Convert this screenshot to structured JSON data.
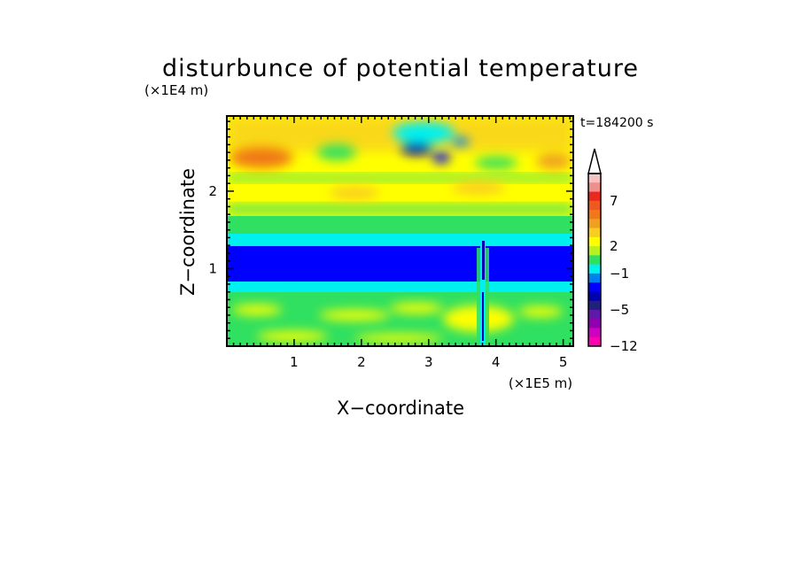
{
  "chart_data": {
    "type": "heatmap",
    "title": "disturbunce of potential temperature",
    "time_label": "t=184200 s",
    "xlabel": "X−coordinate",
    "ylabel": "Z−coordinate",
    "x_unit": "(×1E5 m)",
    "y_unit": "(×1E4 m)",
    "xlim": [
      0,
      5.15
    ],
    "ylim": [
      0,
      2.97
    ],
    "x_ticks": [
      "1",
      "2",
      "3",
      "4",
      "5"
    ],
    "x_tick_values": [
      1,
      2,
      3,
      4,
      5
    ],
    "y_ticks": [
      "1",
      "2"
    ],
    "y_tick_values": [
      1,
      2
    ],
    "colorbar": {
      "labels": [
        "7",
        "2",
        "−1",
        "−5",
        "−12"
      ],
      "levels_top_to_bottom": [
        10,
        9,
        8,
        7,
        6,
        5,
        4,
        3,
        2,
        1,
        0,
        -1,
        -2,
        -3,
        -4,
        -5,
        -6,
        -7,
        -8,
        -12
      ],
      "colors_top_to_bottom": [
        "#f4c2c2",
        "#f08d8d",
        "#e82a1e",
        "#ee5a1e",
        "#f07818",
        "#f0a020",
        "#f8cc20",
        "#ffff00",
        "#b8f020",
        "#30e060",
        "#00f0f0",
        "#0080f0",
        "#0000ff",
        "#0000b0",
        "#202080",
        "#6018a8",
        "#9000b0",
        "#d000c0",
        "#ff00b0"
      ],
      "extend_top": true
    },
    "field": {
      "x_range": [
        0,
        5.15
      ],
      "z_range": [
        0,
        2.97
      ],
      "layers": [
        {
          "z": [
            2.45,
            2.97
          ],
          "value": 2.5,
          "note": "warm upper layer"
        },
        {
          "z": [
            1.45,
            2.45
          ],
          "value": 1.5
        },
        {
          "z": [
            1.3,
            1.45
          ],
          "value": -0.7
        },
        {
          "z": [
            0.85,
            1.3
          ],
          "value": -4
        },
        {
          "z": [
            0.7,
            0.85
          ],
          "value": -0.7
        },
        {
          "z": [
            0,
            0.7
          ],
          "value": 0.3
        }
      ],
      "features": [
        {
          "x": 0.45,
          "z": 2.55,
          "value": 5,
          "kind": "warm anomaly"
        },
        {
          "x": 2.8,
          "z": 2.65,
          "value": -4,
          "kind": "cold anomaly"
        },
        {
          "x": 3.78,
          "z": 0.7,
          "value": -3,
          "kind": "narrow vertical plume"
        }
      ]
    }
  }
}
